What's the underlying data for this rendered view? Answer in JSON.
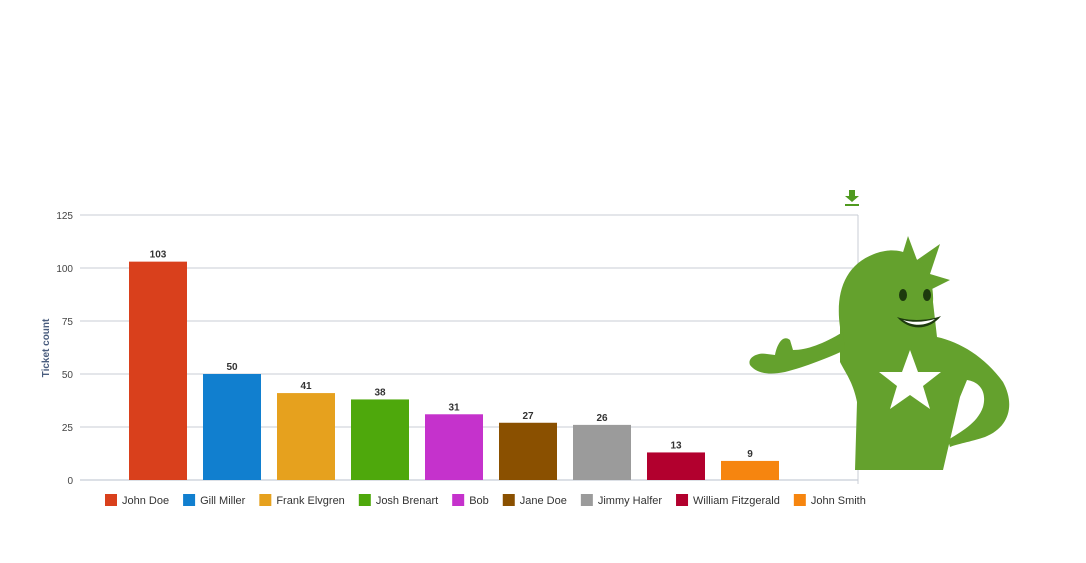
{
  "chart_data": {
    "type": "bar",
    "title": "",
    "xlabel": "",
    "ylabel": "Ticket count",
    "ylim": [
      0,
      125
    ],
    "yticks": [
      0,
      25,
      50,
      75,
      100,
      125
    ],
    "grid": true,
    "legend": "bottom",
    "categories": [
      "John Doe",
      "Gill Miller",
      "Frank Elvgren",
      "Josh Brenart",
      "Bob",
      "Jane Doe",
      "Jimmy Halfer",
      "William Fitzgerald",
      "John Smith"
    ],
    "values": [
      103,
      50,
      41,
      38,
      31,
      27,
      26,
      13,
      9
    ],
    "colors": [
      "#d9401c",
      "#117fcf",
      "#e6a11e",
      "#4ea80c",
      "#c532cc",
      "#8a5000",
      "#9b9b9b",
      "#b2002e",
      "#f6850f"
    ]
  },
  "toolbar": {
    "download_icon": "download-icon"
  },
  "mascot": {
    "icon": "mascot-star-character",
    "color": "#64a12d"
  }
}
